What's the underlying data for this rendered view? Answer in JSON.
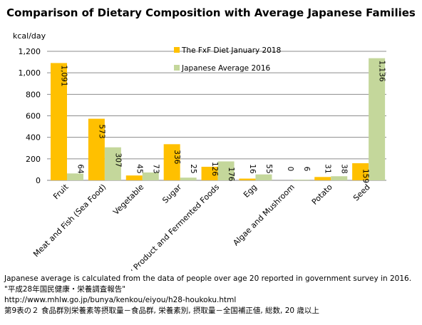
{
  "chart_data": {
    "type": "bar",
    "title": "Comparison of Dietary Composition with Average Japanese Families",
    "ylabel": "kcal/day",
    "xlabel": "",
    "ylim": [
      0,
      1200
    ],
    "yticks": [
      "0",
      "200",
      "400",
      "600",
      "800",
      "1,000",
      "1,200"
    ],
    "grid": true,
    "legend_position": "top-right",
    "categories": [
      "Fruit",
      "Meat and Fish (Sea Food)",
      "Vegetable",
      "Sugar",
      "Dairy Product and Fermented Foods",
      "Egg",
      "Algae and Mushroom",
      "Potato",
      "Seed"
    ],
    "series": [
      {
        "name": "The FxF Diet January 2018",
        "color": "#FFC000",
        "values": [
          1091,
          573,
          45,
          336,
          126,
          16,
          0,
          31,
          159
        ],
        "labels": [
          "1,091",
          "573",
          "45",
          "336",
          "126",
          "16",
          "0",
          "31",
          "159"
        ]
      },
      {
        "name": "Japanese Average 2016",
        "color": "#C4D79B",
        "values": [
          64,
          307,
          73,
          25,
          176,
          55,
          6,
          38,
          1136
        ],
        "labels": [
          "64",
          "307",
          "73",
          "25",
          "176",
          "55",
          "6",
          "38",
          "1,136"
        ]
      }
    ]
  },
  "notes": [
    "Japanese average is calculated from the data of people over age 20 reported in government survey in 2016.",
    "\"平成28年国民健康・栄養調査報告\"",
    "http://www.mhlw.go.jp/bunya/kenkou/eiyou/h28-houkoku.html",
    "第9表の２ 食品群別栄養素等摂取量－食品群, 栄養素別, 摂取量－全国補正値, 総数, 20 歳以上"
  ]
}
